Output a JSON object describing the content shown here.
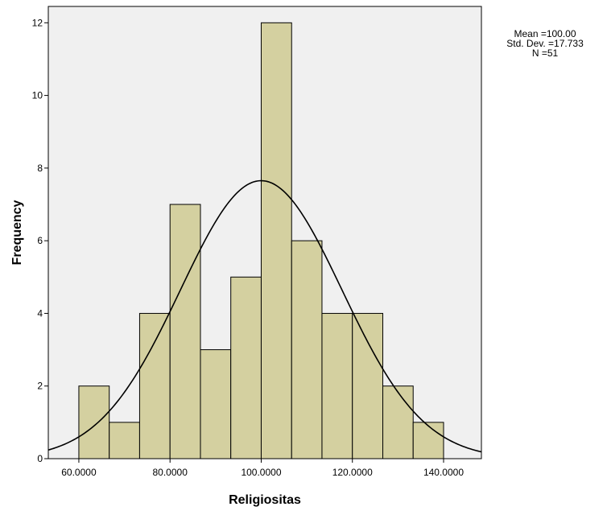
{
  "chart_data": {
    "type": "bar",
    "subtype": "histogram",
    "xlabel": "Religiositas",
    "ylabel": "Frequency",
    "x_ticks": [
      60,
      80,
      100,
      120,
      140
    ],
    "x_tick_labels": [
      "60.0000",
      "80.0000",
      "100.0000",
      "120.0000",
      "140.0000"
    ],
    "y_ticks": [
      0,
      2,
      4,
      6,
      8,
      10,
      12
    ],
    "y_tick_labels": [
      "0",
      "2",
      "4",
      "6",
      "8",
      "10",
      "12"
    ],
    "xlim": [
      53.3,
      148.3
    ],
    "ylim": [
      0,
      12.45
    ],
    "bin_width": 6.67,
    "bins": [
      {
        "start": 60.0,
        "end": 66.67,
        "count": 2
      },
      {
        "start": 66.67,
        "end": 73.33,
        "count": 1
      },
      {
        "start": 73.33,
        "end": 80.0,
        "count": 4
      },
      {
        "start": 80.0,
        "end": 86.67,
        "count": 7
      },
      {
        "start": 86.67,
        "end": 93.33,
        "count": 3
      },
      {
        "start": 93.33,
        "end": 100.0,
        "count": 5
      },
      {
        "start": 100.0,
        "end": 106.67,
        "count": 12
      },
      {
        "start": 106.67,
        "end": 113.33,
        "count": 6
      },
      {
        "start": 113.33,
        "end": 120.0,
        "count": 4
      },
      {
        "start": 120.0,
        "end": 126.67,
        "count": 4
      },
      {
        "start": 126.67,
        "end": 133.33,
        "count": 2
      },
      {
        "start": 133.33,
        "end": 140.0,
        "count": 1
      }
    ],
    "normal_curve": {
      "mean": 100.0,
      "std_dev": 17.733,
      "n": 51
    },
    "grid": false,
    "colors": {
      "bar_fill": "#d4d0a0",
      "bar_stroke": "#000000",
      "plot_background": "#f0f0f0",
      "curve": "#000000"
    }
  },
  "stats": {
    "mean_line": "Mean =100.00",
    "std_line": "Std. Dev. =17.733",
    "n_line": "N =51"
  }
}
